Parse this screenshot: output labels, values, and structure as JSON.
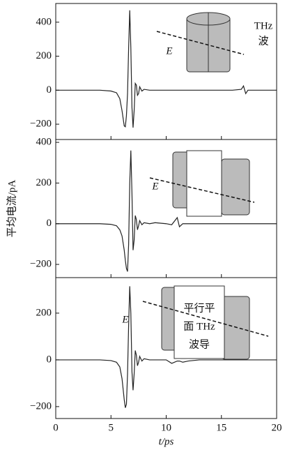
{
  "chart_data": [
    {
      "type": "line",
      "x": [
        0,
        1,
        2,
        3,
        4,
        5,
        5.5,
        5.8,
        6.0,
        6.2,
        6.3,
        6.4,
        6.5,
        6.6,
        6.7,
        6.8,
        6.9,
        7.0,
        7.1,
        7.2,
        7.3,
        7.4,
        7.5,
        7.6,
        7.8,
        8.0,
        8.5,
        9,
        10,
        10.5,
        11,
        11.2,
        11.5,
        12,
        13,
        14,
        15,
        16,
        16.8,
        17.0,
        17.2,
        17.4,
        18,
        19,
        20
      ],
      "series": [
        {
          "color": "#222222",
          "values": [
            0,
            0,
            0,
            0,
            0,
            -5,
            -15,
            -50,
            -120,
            -210,
            -215,
            -150,
            -20,
            250,
            470,
            250,
            -100,
            -220,
            -120,
            40,
            30,
            -30,
            -20,
            20,
            -5,
            5,
            0,
            0,
            0,
            0,
            0,
            0,
            0,
            0,
            0,
            0,
            0,
            0,
            5,
            25,
            -20,
            0,
            0,
            0,
            0
          ]
        }
      ],
      "xlim": [
        0,
        20
      ],
      "ylim": [
        -290,
        510
      ],
      "yticks": [
        {
          "value": -200,
          "label": "−200"
        },
        0,
        200,
        400
      ],
      "annotations": [
        "THz",
        "波",
        "E"
      ]
    },
    {
      "type": "line",
      "x": [
        0,
        1,
        2,
        3,
        4,
        5,
        5.5,
        5.8,
        6.0,
        6.2,
        6.3,
        6.4,
        6.5,
        6.6,
        6.7,
        6.8,
        6.9,
        7.0,
        7.1,
        7.2,
        7.3,
        7.4,
        7.5,
        7.6,
        7.8,
        8.0,
        8.5,
        9,
        10,
        10.5,
        11,
        11.2,
        11.5,
        12,
        13,
        14,
        15,
        16,
        16.8,
        17.0,
        17.2,
        17.4,
        18,
        19,
        20
      ],
      "series": [
        {
          "color": "#222222",
          "values": [
            0,
            0,
            0,
            0,
            0,
            -3,
            -10,
            -30,
            -60,
            -130,
            -180,
            -220,
            -235,
            -100,
            200,
            360,
            150,
            -130,
            -80,
            40,
            20,
            -30,
            -10,
            15,
            -5,
            5,
            0,
            5,
            0,
            -5,
            30,
            -15,
            0,
            0,
            0,
            0,
            0,
            0,
            0,
            0,
            0,
            0,
            0,
            0,
            0
          ]
        }
      ],
      "xlim": [
        0,
        20
      ],
      "ylim": [
        -265,
        414
      ],
      "yticks": [
        {
          "value": -200,
          "label": "−200"
        },
        0,
        200,
        400
      ],
      "ylabel": "平均电流/pA",
      "annotations": [
        "E"
      ]
    },
    {
      "type": "line",
      "x": [
        0,
        1,
        2,
        3,
        4,
        5,
        5.5,
        5.8,
        6.0,
        6.2,
        6.3,
        6.4,
        6.5,
        6.6,
        6.7,
        6.8,
        6.9,
        7.0,
        7.1,
        7.2,
        7.3,
        7.4,
        7.5,
        7.6,
        7.8,
        8.0,
        8.5,
        9,
        10,
        10.5,
        11,
        11.2,
        11.5,
        12,
        13,
        14,
        15,
        16,
        16.8,
        17.0,
        17.2,
        17.4,
        18,
        19,
        20
      ],
      "series": [
        {
          "color": "#222222",
          "values": [
            0,
            0,
            0,
            0,
            0,
            -3,
            -10,
            -30,
            -80,
            -170,
            -205,
            -190,
            -60,
            150,
            315,
            200,
            -50,
            -130,
            -60,
            40,
            20,
            -25,
            -10,
            15,
            -5,
            5,
            0,
            0,
            0,
            -15,
            -5,
            -5,
            -10,
            -5,
            0,
            0,
            0,
            0,
            0,
            0,
            0,
            0,
            0,
            0,
            0
          ]
        }
      ],
      "xlim": [
        0,
        20
      ],
      "ylim": [
        -251,
        352
      ],
      "xticks": [
        0,
        5,
        10,
        15,
        20
      ],
      "yticks": [
        {
          "value": -200,
          "label": "−200"
        },
        0,
        200
      ],
      "xlabel": "t/ps",
      "annotations": [
        "平行平",
        "面 THz",
        "波导",
        "E"
      ]
    }
  ]
}
